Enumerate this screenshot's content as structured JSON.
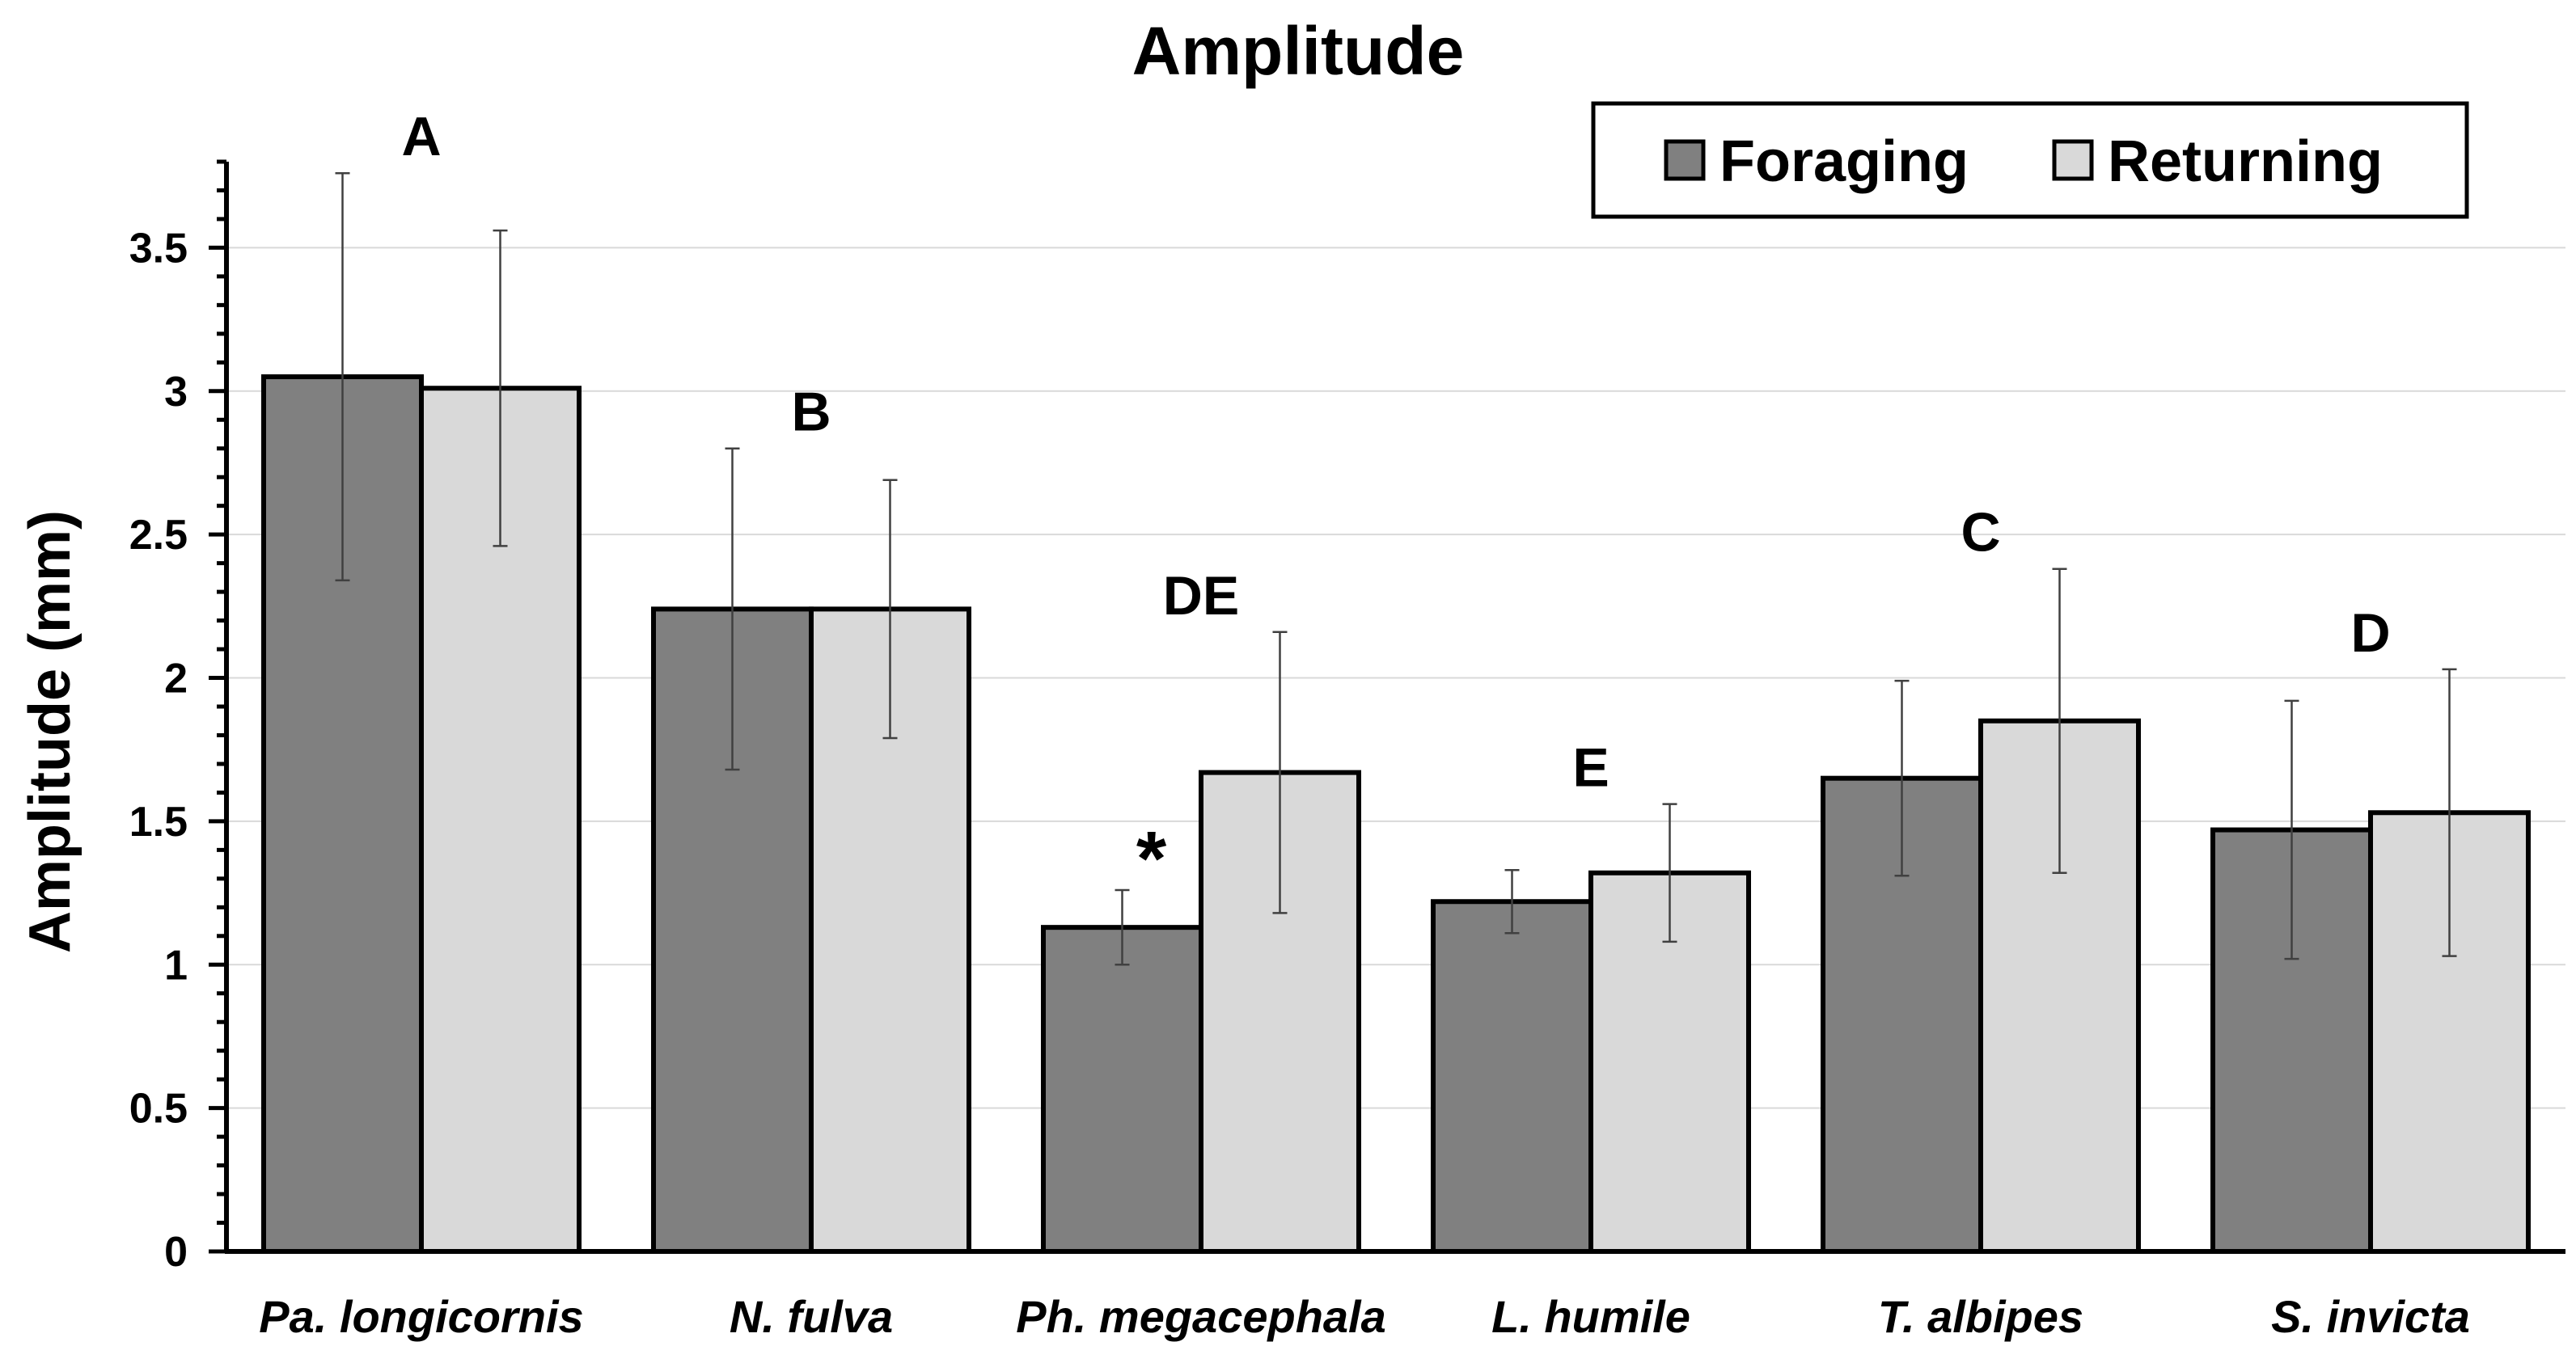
{
  "chart_data": {
    "type": "bar",
    "title": "Amplitude",
    "xlabel": "",
    "ylabel": "Amplitude (mm)",
    "ylim": [
      0,
      3.8
    ],
    "yticks": [
      "0",
      "0.5",
      "1",
      "1.5",
      "2",
      "2.5",
      "3",
      "3.5"
    ],
    "grid": true,
    "legend_position": "top-right",
    "categories": [
      "Pa. longicornis",
      "N. fulva",
      "Ph. megacephala",
      "L. humile",
      "T. albipes",
      "S. invicta"
    ],
    "series": [
      {
        "name": "Foraging",
        "color": "#808080",
        "values": [
          3.05,
          2.24,
          1.13,
          1.22,
          1.65,
          1.47
        ],
        "errors": [
          0.71,
          0.56,
          0.13,
          0.11,
          0.34,
          0.45
        ]
      },
      {
        "name": "Returning",
        "color": "#d9d9d9",
        "values": [
          3.01,
          2.24,
          1.67,
          1.32,
          1.85,
          1.53
        ],
        "errors": [
          0.55,
          0.45,
          0.49,
          0.24,
          0.53,
          0.5
        ]
      }
    ],
    "group_letters": [
      "A",
      "B",
      "DE",
      "E",
      "C",
      "D"
    ],
    "annotations": [
      {
        "category": "Ph. megacephala",
        "series": "Foraging",
        "text": "*"
      }
    ]
  }
}
